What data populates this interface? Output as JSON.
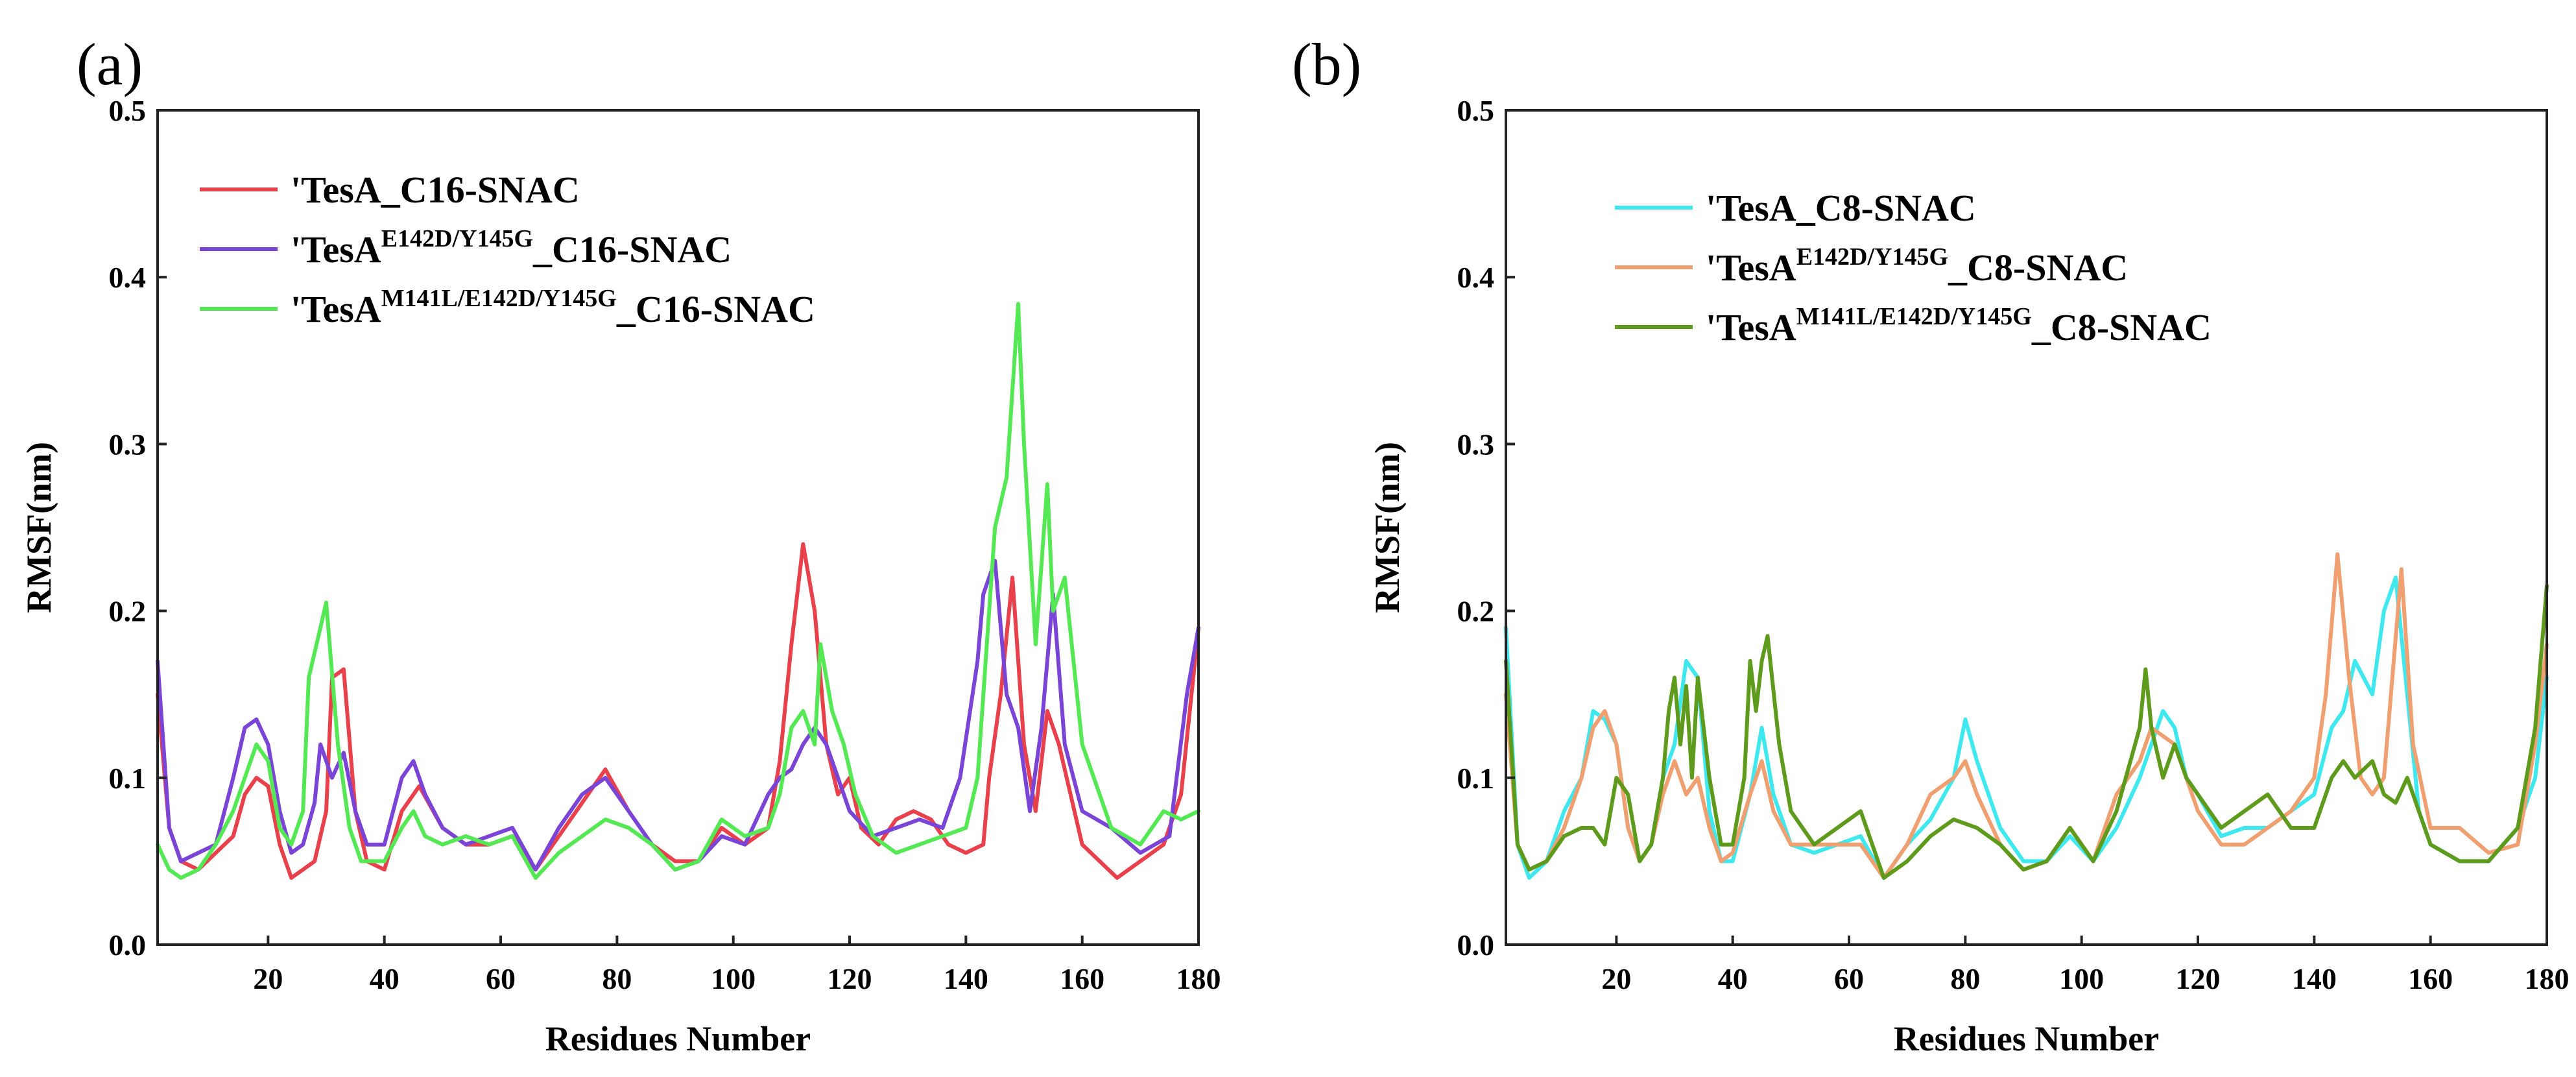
{
  "figure": {
    "panels": [
      "(a)",
      "(b)"
    ]
  },
  "chart_data": [
    {
      "type": "line",
      "panel": "(a)",
      "title": "",
      "xlabel": "Residues Number",
      "ylabel": "RMSF(nm)",
      "xlim": [
        1,
        180
      ],
      "ylim": [
        0.0,
        0.5
      ],
      "xticks": [
        20,
        40,
        60,
        80,
        100,
        120,
        140,
        160,
        180
      ],
      "yticks": [
        0.0,
        0.1,
        0.2,
        0.3,
        0.4,
        0.5
      ],
      "ytick_labels": [
        "0.0",
        "0.1",
        "0.2",
        "0.3",
        "0.4",
        "0.5"
      ],
      "grid": false,
      "legend_position": "top-left",
      "series": [
        {
          "name": "'TesA_C16-SNAC",
          "legend": {
            "base": "'TesA",
            "sup": "",
            "suffix": "_C16-SNAC"
          },
          "color": "#e8414b",
          "x": [
            1,
            3,
            5,
            8,
            11,
            14,
            16,
            18,
            20,
            22,
            24,
            26,
            28,
            30,
            31,
            33,
            35,
            37,
            40,
            43,
            46,
            50,
            54,
            58,
            62,
            66,
            70,
            74,
            78,
            82,
            86,
            90,
            94,
            98,
            102,
            106,
            108,
            110,
            112,
            114,
            116,
            118,
            120,
            122,
            125,
            128,
            131,
            134,
            137,
            140,
            143,
            144,
            146,
            148,
            150,
            152,
            154,
            156,
            158,
            160,
            163,
            166,
            170,
            174,
            177,
            180
          ],
          "values": [
            0.15,
            0.07,
            0.05,
            0.045,
            0.055,
            0.065,
            0.09,
            0.1,
            0.095,
            0.06,
            0.04,
            0.045,
            0.05,
            0.08,
            0.16,
            0.165,
            0.08,
            0.05,
            0.045,
            0.08,
            0.095,
            0.07,
            0.06,
            0.06,
            0.065,
            0.045,
            0.065,
            0.085,
            0.105,
            0.08,
            0.06,
            0.05,
            0.05,
            0.07,
            0.06,
            0.07,
            0.11,
            0.18,
            0.24,
            0.2,
            0.12,
            0.09,
            0.1,
            0.07,
            0.06,
            0.075,
            0.08,
            0.075,
            0.06,
            0.055,
            0.06,
            0.1,
            0.15,
            0.22,
            0.12,
            0.08,
            0.14,
            0.12,
            0.09,
            0.06,
            0.05,
            0.04,
            0.05,
            0.06,
            0.09,
            0.19
          ]
        },
        {
          "name": "'TesA E142D/Y145G _C16-SNAC",
          "legend": {
            "base": "'TesA",
            "sup": "E142D/Y145G",
            "suffix": "_C16-SNAC"
          },
          "color": "#7a45d6",
          "x": [
            1,
            3,
            5,
            8,
            11,
            14,
            16,
            18,
            20,
            22,
            24,
            26,
            28,
            29,
            31,
            33,
            35,
            37,
            40,
            43,
            45,
            47,
            50,
            54,
            58,
            62,
            66,
            70,
            74,
            78,
            82,
            86,
            90,
            94,
            98,
            102,
            106,
            108,
            110,
            112,
            114,
            116,
            118,
            120,
            124,
            128,
            132,
            136,
            139,
            142,
            143,
            145,
            147,
            149,
            151,
            153,
            155,
            157,
            160,
            165,
            170,
            175,
            178,
            180
          ],
          "values": [
            0.17,
            0.07,
            0.05,
            0.055,
            0.06,
            0.1,
            0.13,
            0.135,
            0.12,
            0.08,
            0.055,
            0.06,
            0.085,
            0.12,
            0.1,
            0.115,
            0.08,
            0.06,
            0.06,
            0.1,
            0.11,
            0.09,
            0.07,
            0.06,
            0.065,
            0.07,
            0.045,
            0.07,
            0.09,
            0.1,
            0.08,
            0.06,
            0.045,
            0.05,
            0.065,
            0.06,
            0.09,
            0.1,
            0.105,
            0.12,
            0.13,
            0.12,
            0.1,
            0.08,
            0.065,
            0.07,
            0.075,
            0.07,
            0.1,
            0.17,
            0.21,
            0.23,
            0.15,
            0.13,
            0.08,
            0.13,
            0.21,
            0.12,
            0.08,
            0.07,
            0.055,
            0.065,
            0.15,
            0.19
          ]
        },
        {
          "name": "'TesA M141L/E142D/Y145G _C16-SNAC",
          "legend": {
            "base": "'TesA",
            "sup": "M141L/E142D/Y145G",
            "suffix": "_C16-SNAC"
          },
          "color": "#55e855",
          "x": [
            1,
            3,
            5,
            8,
            11,
            14,
            16,
            18,
            20,
            22,
            24,
            26,
            27,
            29,
            30,
            32,
            34,
            36,
            40,
            43,
            45,
            47,
            50,
            54,
            58,
            62,
            66,
            70,
            74,
            78,
            82,
            86,
            90,
            94,
            98,
            102,
            106,
            108,
            110,
            112,
            114,
            115,
            117,
            119,
            121,
            124,
            128,
            132,
            136,
            140,
            142,
            144,
            145,
            147,
            149,
            150,
            152,
            154,
            155,
            157,
            160,
            165,
            170,
            174,
            177,
            180
          ],
          "values": [
            0.06,
            0.045,
            0.04,
            0.045,
            0.06,
            0.08,
            0.1,
            0.12,
            0.11,
            0.07,
            0.06,
            0.08,
            0.16,
            0.19,
            0.205,
            0.12,
            0.07,
            0.05,
            0.05,
            0.07,
            0.08,
            0.065,
            0.06,
            0.065,
            0.06,
            0.065,
            0.04,
            0.055,
            0.065,
            0.075,
            0.07,
            0.06,
            0.045,
            0.05,
            0.075,
            0.065,
            0.07,
            0.09,
            0.13,
            0.14,
            0.12,
            0.18,
            0.14,
            0.12,
            0.09,
            0.065,
            0.055,
            0.06,
            0.065,
            0.07,
            0.1,
            0.2,
            0.25,
            0.28,
            0.384,
            0.3,
            0.18,
            0.276,
            0.2,
            0.22,
            0.12,
            0.07,
            0.06,
            0.08,
            0.075,
            0.08
          ]
        }
      ]
    },
    {
      "type": "line",
      "panel": "(b)",
      "title": "",
      "xlabel": "Residues Number",
      "ylabel": "RMSF(nm)",
      "xlim": [
        1,
        180
      ],
      "ylim": [
        0.0,
        0.5
      ],
      "xticks": [
        20,
        40,
        60,
        80,
        100,
        120,
        140,
        160,
        180
      ],
      "yticks": [
        0.0,
        0.1,
        0.2,
        0.3,
        0.4,
        0.5
      ],
      "ytick_labels": [
        "0.0",
        "0.1",
        "0.2",
        "0.3",
        "0.4",
        "0.5"
      ],
      "grid": false,
      "legend_position": "top-left",
      "series": [
        {
          "name": "'TesA_C8-SNAC",
          "legend": {
            "base": "'TesA",
            "sup": "",
            "suffix": "_C8-SNAC"
          },
          "color": "#3fe8ee",
          "x": [
            1,
            3,
            5,
            8,
            11,
            14,
            16,
            18,
            20,
            22,
            24,
            26,
            28,
            30,
            32,
            34,
            36,
            38,
            40,
            43,
            45,
            47,
            50,
            54,
            58,
            62,
            66,
            70,
            74,
            78,
            80,
            82,
            86,
            90,
            94,
            98,
            102,
            106,
            110,
            112,
            114,
            116,
            118,
            120,
            124,
            128,
            132,
            136,
            140,
            143,
            145,
            147,
            150,
            152,
            154,
            156,
            158,
            160,
            165,
            170,
            175,
            178,
            180
          ],
          "values": [
            0.19,
            0.06,
            0.04,
            0.05,
            0.08,
            0.1,
            0.14,
            0.135,
            0.12,
            0.07,
            0.05,
            0.06,
            0.1,
            0.12,
            0.17,
            0.16,
            0.08,
            0.05,
            0.05,
            0.09,
            0.13,
            0.09,
            0.06,
            0.055,
            0.06,
            0.065,
            0.04,
            0.06,
            0.075,
            0.1,
            0.135,
            0.11,
            0.07,
            0.05,
            0.05,
            0.065,
            0.05,
            0.07,
            0.1,
            0.12,
            0.14,
            0.13,
            0.1,
            0.09,
            0.065,
            0.07,
            0.07,
            0.08,
            0.09,
            0.13,
            0.14,
            0.17,
            0.15,
            0.2,
            0.22,
            0.15,
            0.08,
            0.06,
            0.05,
            0.05,
            0.07,
            0.1,
            0.16
          ]
        },
        {
          "name": "'TesA E142D/Y145G _C8-SNAC",
          "legend": {
            "base": "'TesA",
            "sup": "E142D/Y145G",
            "suffix": "_C8-SNAC"
          },
          "color": "#f0a070",
          "x": [
            1,
            3,
            5,
            8,
            11,
            14,
            16,
            18,
            20,
            22,
            24,
            26,
            28,
            30,
            32,
            34,
            36,
            38,
            40,
            43,
            45,
            47,
            50,
            54,
            58,
            62,
            66,
            70,
            74,
            78,
            80,
            82,
            86,
            90,
            94,
            98,
            102,
            106,
            110,
            112,
            114,
            116,
            118,
            120,
            124,
            128,
            132,
            136,
            140,
            142,
            144,
            146,
            148,
            150,
            152,
            155,
            157,
            160,
            165,
            170,
            175,
            178,
            180
          ],
          "values": [
            0.15,
            0.06,
            0.045,
            0.05,
            0.07,
            0.1,
            0.13,
            0.14,
            0.12,
            0.07,
            0.05,
            0.06,
            0.09,
            0.11,
            0.09,
            0.1,
            0.07,
            0.05,
            0.055,
            0.09,
            0.11,
            0.08,
            0.06,
            0.06,
            0.06,
            0.06,
            0.04,
            0.06,
            0.09,
            0.1,
            0.11,
            0.09,
            0.06,
            0.045,
            0.05,
            0.07,
            0.05,
            0.09,
            0.11,
            0.13,
            0.125,
            0.12,
            0.1,
            0.08,
            0.06,
            0.06,
            0.07,
            0.08,
            0.1,
            0.15,
            0.234,
            0.16,
            0.1,
            0.09,
            0.1,
            0.225,
            0.12,
            0.07,
            0.07,
            0.055,
            0.06,
            0.12,
            0.18
          ]
        },
        {
          "name": "'TesA M141L/E142D/Y145G _C8-SNAC",
          "legend": {
            "base": "'TesA",
            "sup": "M141L/E142D/Y145G",
            "suffix": "_C8-SNAC"
          },
          "color": "#5e9a1c",
          "x": [
            1,
            3,
            5,
            8,
            11,
            14,
            16,
            18,
            20,
            22,
            24,
            26,
            28,
            29,
            30,
            31,
            32,
            33,
            34,
            36,
            38,
            40,
            42,
            43,
            44,
            45,
            46,
            48,
            50,
            54,
            58,
            62,
            66,
            70,
            74,
            78,
            82,
            86,
            90,
            94,
            98,
            102,
            106,
            110,
            111,
            112,
            114,
            116,
            118,
            120,
            124,
            128,
            132,
            136,
            140,
            143,
            145,
            147,
            150,
            152,
            154,
            156,
            158,
            160,
            165,
            170,
            175,
            178,
            180
          ],
          "values": [
            0.17,
            0.06,
            0.045,
            0.05,
            0.065,
            0.07,
            0.07,
            0.06,
            0.1,
            0.09,
            0.05,
            0.06,
            0.1,
            0.14,
            0.16,
            0.12,
            0.155,
            0.1,
            0.16,
            0.1,
            0.06,
            0.06,
            0.1,
            0.17,
            0.14,
            0.17,
            0.185,
            0.12,
            0.08,
            0.06,
            0.07,
            0.08,
            0.04,
            0.05,
            0.065,
            0.075,
            0.07,
            0.06,
            0.045,
            0.05,
            0.07,
            0.05,
            0.08,
            0.13,
            0.165,
            0.13,
            0.1,
            0.12,
            0.1,
            0.09,
            0.07,
            0.08,
            0.09,
            0.07,
            0.07,
            0.1,
            0.11,
            0.1,
            0.11,
            0.09,
            0.085,
            0.1,
            0.08,
            0.06,
            0.05,
            0.05,
            0.07,
            0.13,
            0.215
          ]
        }
      ]
    }
  ]
}
